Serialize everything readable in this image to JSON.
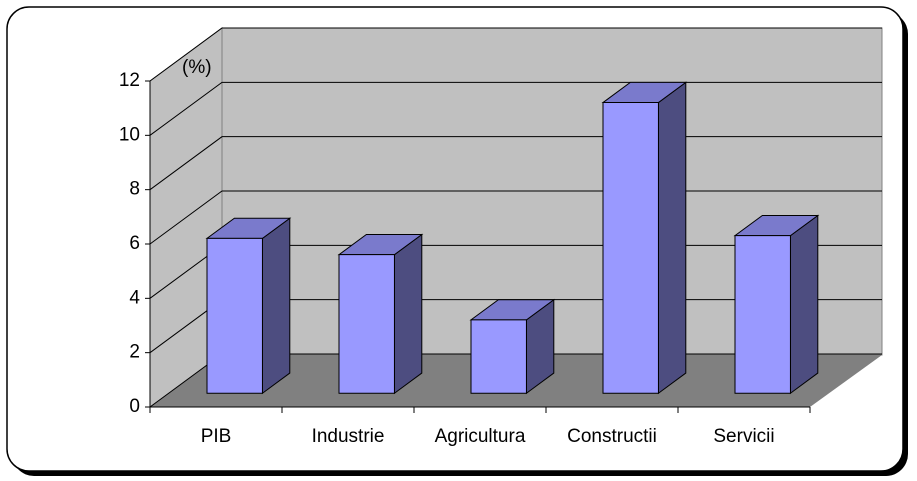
{
  "chart_data": {
    "type": "bar3d",
    "y_label": "(%)",
    "categories": [
      "PIB",
      "Industrie",
      "Agricultura",
      "Constructii",
      "Servicii"
    ],
    "values": [
      5.7,
      5.1,
      2.7,
      10.7,
      5.8
    ],
    "color": "#9999ff",
    "ylim": [
      0,
      12
    ],
    "yticks": [
      0,
      2,
      4,
      6,
      8,
      10,
      12
    ],
    "grid": true
  }
}
